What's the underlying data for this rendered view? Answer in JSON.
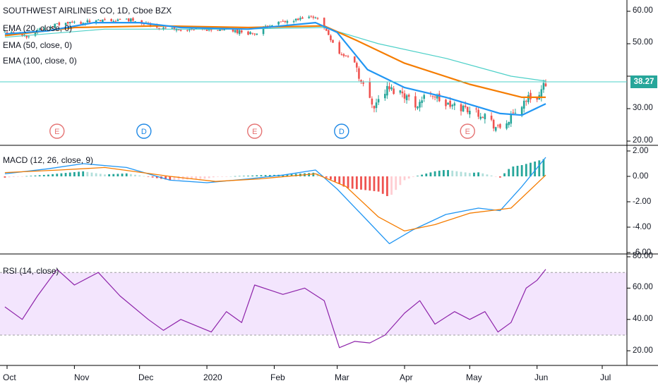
{
  "symbol_title": "SOUTHWEST AIRLINES CO, 1D, Cboe BZX",
  "last_price": "38.27",
  "indicators": {
    "ema20": "EMA (20, close, 0)",
    "ema50": "EMA (50, close, 0)",
    "ema100": "EMA (100, close, 0)",
    "macd": "MACD (12, 26, close, 9)",
    "rsi": "RSI (14, close)"
  },
  "colors": {
    "up": "#26a69a",
    "down": "#ef5350",
    "ema20": "#2196f3",
    "ema50": "#f57c00",
    "ema100": "#4dd0c8",
    "macd_line": "#2196f3",
    "signal_line": "#f57c00",
    "rsi_line": "#8e24aa",
    "rsi_band": "#f3e5fd",
    "earnings": "#e57373",
    "dividend": "#1e88e5"
  },
  "events": [
    {
      "type": "earnings",
      "label": "E",
      "date": "2019-10-24"
    },
    {
      "type": "dividend",
      "label": "D",
      "date": "2019-12-03"
    },
    {
      "type": "earnings",
      "label": "E",
      "date": "2020-01-23"
    },
    {
      "type": "dividend",
      "label": "D",
      "date": "2020-03-03"
    },
    {
      "type": "earnings",
      "label": "E",
      "date": "2020-04-30"
    }
  ],
  "chart_data": [
    {
      "type": "candlestick",
      "title": "SOUTHWEST AIRLINES CO, 1D, Cboe BZX",
      "y_ticks": [
        "60.00",
        "50.00",
        "40.00",
        "30.00",
        "20.00"
      ],
      "ylim": [
        19,
        62
      ],
      "x_ticks": [
        "Oct",
        "Nov",
        "Dec",
        "2020",
        "Feb",
        "Mar",
        "Apr",
        "May",
        "Jun",
        "Jul"
      ],
      "x_tick_dates": [
        "2019-10-01",
        "2019-11-01",
        "2019-12-01",
        "2020-01-01",
        "2020-02-01",
        "2020-03-01",
        "2020-04-01",
        "2020-05-01",
        "2020-06-01",
        "2020-07-01"
      ],
      "close_anchors": [
        {
          "date": "2019-09-30",
          "close": 53.5
        },
        {
          "date": "2019-10-10",
          "close": 52.5
        },
        {
          "date": "2019-10-20",
          "close": 55.5
        },
        {
          "date": "2019-10-31",
          "close": 56.5
        },
        {
          "date": "2019-11-15",
          "close": 57.0
        },
        {
          "date": "2019-11-28",
          "close": 57.5
        },
        {
          "date": "2019-12-10",
          "close": 55.0
        },
        {
          "date": "2019-12-24",
          "close": 54.0
        },
        {
          "date": "2020-01-08",
          "close": 54.5
        },
        {
          "date": "2020-01-24",
          "close": 53.0
        },
        {
          "date": "2020-01-30",
          "close": 56.0
        },
        {
          "date": "2020-02-10",
          "close": 57.0
        },
        {
          "date": "2020-02-20",
          "close": 58.5
        },
        {
          "date": "2020-02-25",
          "close": 54.0
        },
        {
          "date": "2020-03-02",
          "close": 47.0
        },
        {
          "date": "2020-03-09",
          "close": 45.0
        },
        {
          "date": "2020-03-12",
          "close": 38.0
        },
        {
          "date": "2020-03-18",
          "close": 31.0
        },
        {
          "date": "2020-03-24",
          "close": 36.0
        },
        {
          "date": "2020-03-31",
          "close": 35.0
        },
        {
          "date": "2020-04-06",
          "close": 31.0
        },
        {
          "date": "2020-04-13",
          "close": 35.0
        },
        {
          "date": "2020-04-20",
          "close": 31.0
        },
        {
          "date": "2020-04-30",
          "close": 30.0
        },
        {
          "date": "2020-05-08",
          "close": 28.0
        },
        {
          "date": "2020-05-14",
          "close": 23.5
        },
        {
          "date": "2020-05-20",
          "close": 27.0
        },
        {
          "date": "2020-05-27",
          "close": 33.0
        },
        {
          "date": "2020-06-02",
          "close": 34.0
        },
        {
          "date": "2020-06-05",
          "close": 38.27
        }
      ],
      "series": [
        {
          "name": "EMA (20, close, 0)",
          "values": [
            [
              "2019-09-30",
              53.0
            ],
            [
              "2019-10-20",
              54.0
            ],
            [
              "2019-11-10",
              56.5
            ],
            [
              "2019-12-01",
              56.5
            ],
            [
              "2019-12-20",
              55.0
            ],
            [
              "2020-01-20",
              54.5
            ],
            [
              "2020-02-20",
              56.5
            ],
            [
              "2020-03-01",
              53.5
            ],
            [
              "2020-03-15",
              42.0
            ],
            [
              "2020-04-01",
              36.5
            ],
            [
              "2020-04-20",
              33.5
            ],
            [
              "2020-05-15",
              28.5
            ],
            [
              "2020-05-25",
              28.0
            ],
            [
              "2020-06-05",
              31.5
            ]
          ]
        },
        {
          "name": "EMA (50, close, 0)",
          "values": [
            [
              "2019-09-30",
              52.5
            ],
            [
              "2019-11-01",
              55.0
            ],
            [
              "2019-12-10",
              55.5
            ],
            [
              "2020-01-20",
              55.0
            ],
            [
              "2020-02-24",
              55.5
            ],
            [
              "2020-03-10",
              51.0
            ],
            [
              "2020-04-01",
              44.0
            ],
            [
              "2020-05-01",
              37.5
            ],
            [
              "2020-05-25",
              33.5
            ],
            [
              "2020-06-05",
              33.5
            ]
          ]
        },
        {
          "name": "EMA (100, close, 0)",
          "values": [
            [
              "2019-09-30",
              52.0
            ],
            [
              "2019-11-15",
              54.5
            ],
            [
              "2020-01-15",
              54.5
            ],
            [
              "2020-02-24",
              55.0
            ],
            [
              "2020-03-20",
              50.0
            ],
            [
              "2020-04-20",
              45.5
            ],
            [
              "2020-05-20",
              40.0
            ],
            [
              "2020-06-05",
              38.5
            ]
          ]
        }
      ]
    },
    {
      "type": "line",
      "title": "MACD (12, 26, close, 9)",
      "y_ticks": [
        "2.00",
        "0.00",
        "-2.00",
        "-4.00",
        "-6.00"
      ],
      "ylim": [
        -6.3,
        2.2
      ],
      "series": [
        {
          "name": "MACD",
          "values": [
            [
              "2019-09-30",
              0.2
            ],
            [
              "2019-10-20",
              0.6
            ],
            [
              "2019-11-05",
              1.0
            ],
            [
              "2019-11-25",
              0.7
            ],
            [
              "2019-12-15",
              -0.3
            ],
            [
              "2020-01-01",
              -0.5
            ],
            [
              "2020-01-20",
              -0.2
            ],
            [
              "2020-02-05",
              0.1
            ],
            [
              "2020-02-20",
              0.5
            ],
            [
              "2020-03-01",
              -1.0
            ],
            [
              "2020-03-15",
              -3.5
            ],
            [
              "2020-03-25",
              -5.3
            ],
            [
              "2020-04-05",
              -4.2
            ],
            [
              "2020-04-20",
              -3.0
            ],
            [
              "2020-05-05",
              -2.5
            ],
            [
              "2020-05-15",
              -2.7
            ],
            [
              "2020-05-25",
              -0.8
            ],
            [
              "2020-06-05",
              1.5
            ]
          ]
        },
        {
          "name": "Signal",
          "values": [
            [
              "2019-09-30",
              0.3
            ],
            [
              "2019-10-25",
              0.5
            ],
            [
              "2019-11-15",
              0.7
            ],
            [
              "2019-12-15",
              0.0
            ],
            [
              "2020-01-05",
              -0.4
            ],
            [
              "2020-01-25",
              -0.2
            ],
            [
              "2020-02-20",
              0.2
            ],
            [
              "2020-03-05",
              -0.8
            ],
            [
              "2020-03-20",
              -3.2
            ],
            [
              "2020-04-01",
              -4.3
            ],
            [
              "2020-04-15",
              -3.8
            ],
            [
              "2020-05-01",
              -2.9
            ],
            [
              "2020-05-20",
              -2.5
            ],
            [
              "2020-06-05",
              0.1
            ]
          ]
        }
      ]
    },
    {
      "type": "line",
      "title": "RSI (14, close)",
      "y_ticks": [
        "80.00",
        "60.00",
        "40.00",
        "20.00"
      ],
      "ylim": [
        13,
        82
      ],
      "band": [
        30,
        70
      ],
      "series": [
        {
          "name": "RSI",
          "values": [
            [
              "2019-09-30",
              48
            ],
            [
              "2019-10-08",
              40
            ],
            [
              "2019-10-15",
              55
            ],
            [
              "2019-10-24",
              72
            ],
            [
              "2019-11-01",
              62
            ],
            [
              "2019-11-12",
              70
            ],
            [
              "2019-11-22",
              55
            ],
            [
              "2019-12-05",
              40
            ],
            [
              "2019-12-12",
              33
            ],
            [
              "2019-12-20",
              40
            ],
            [
              "2020-01-03",
              32
            ],
            [
              "2020-01-10",
              45
            ],
            [
              "2020-01-17",
              38
            ],
            [
              "2020-01-23",
              62
            ],
            [
              "2020-02-05",
              56
            ],
            [
              "2020-02-15",
              60
            ],
            [
              "2020-02-24",
              52
            ],
            [
              "2020-03-02",
              22
            ],
            [
              "2020-03-09",
              26
            ],
            [
              "2020-03-16",
              25
            ],
            [
              "2020-03-23",
              30
            ],
            [
              "2020-04-01",
              44
            ],
            [
              "2020-04-08",
              52
            ],
            [
              "2020-04-15",
              37
            ],
            [
              "2020-04-24",
              45
            ],
            [
              "2020-05-01",
              40
            ],
            [
              "2020-05-08",
              45
            ],
            [
              "2020-05-14",
              32
            ],
            [
              "2020-05-20",
              38
            ],
            [
              "2020-05-27",
              60
            ],
            [
              "2020-06-01",
              65
            ],
            [
              "2020-06-05",
              72
            ]
          ]
        }
      ]
    }
  ]
}
